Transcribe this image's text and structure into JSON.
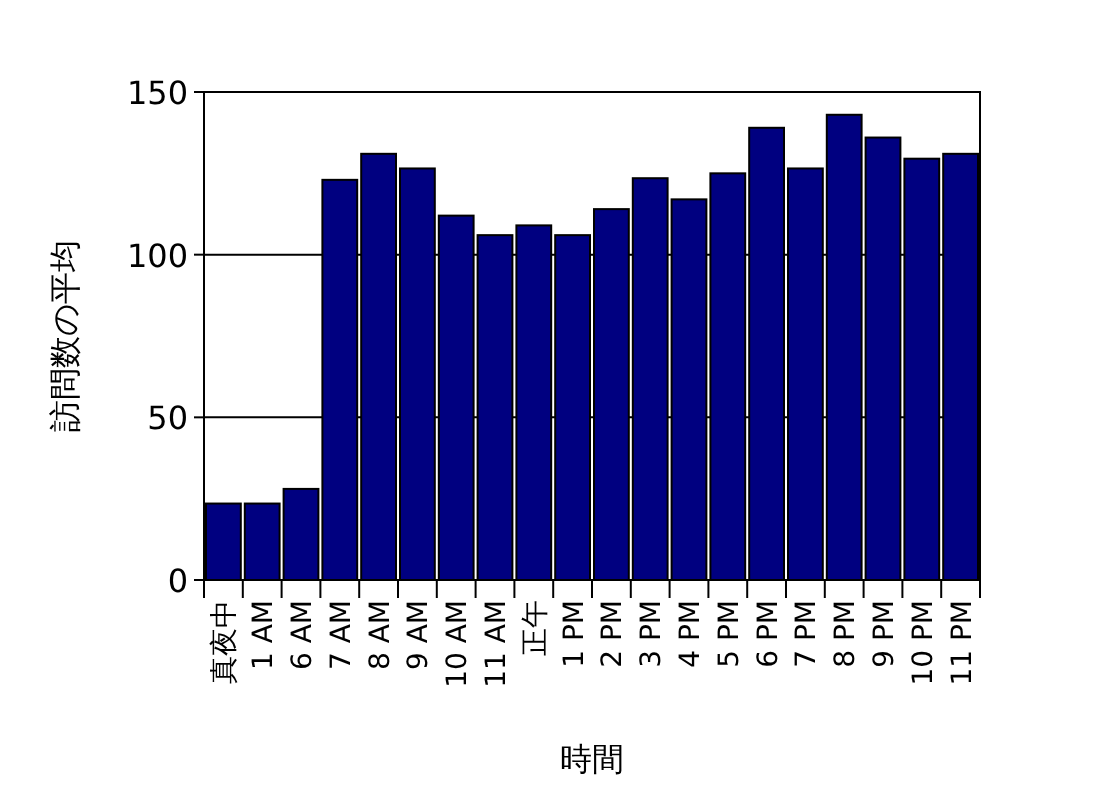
{
  "chart_data": {
    "type": "bar",
    "xlabel": "時間",
    "ylabel": "訪問数の平均",
    "categories": [
      "真夜中",
      "1 AM",
      "6 AM",
      "7 AM",
      "8 AM",
      "9 AM",
      "10 AM",
      "11 AM",
      "正午",
      "1 PM",
      "2 PM",
      "3 PM",
      "4 PM",
      "5 PM",
      "6 PM",
      "7 PM",
      "8 PM",
      "9 PM",
      "10 PM",
      "11 PM"
    ],
    "values": [
      23.5,
      23.5,
      28,
      123,
      131,
      126.5,
      112,
      106,
      109,
      106,
      114,
      123.5,
      117,
      125,
      139,
      126.5,
      143,
      136,
      129.5,
      131
    ],
    "color": "#000080",
    "ylim": [
      0,
      150
    ],
    "yticks": [
      0,
      50,
      100,
      150
    ],
    "grid": "y"
  }
}
